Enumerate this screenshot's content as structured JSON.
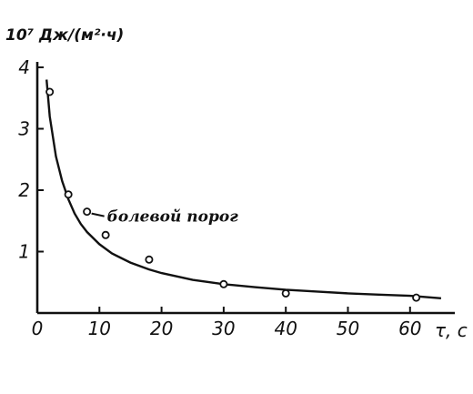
{
  "chart_data": {
    "type": "line",
    "ylabel": "10⁷ Дж/(м²·ч)",
    "xlabel": "τ, с",
    "xlim": [
      0,
      65
    ],
    "ylim": [
      0,
      4
    ],
    "x_ticks": [
      0,
      10,
      20,
      30,
      40,
      50,
      60
    ],
    "y_ticks": [
      1,
      2,
      3,
      4
    ],
    "x_tick_labels": [
      "0",
      "10",
      "20",
      "30",
      "40",
      "50",
      "60"
    ],
    "y_tick_labels": [
      "1",
      "2",
      "3",
      "4"
    ],
    "series": [
      {
        "kind": "curve",
        "x": [
          1.5,
          2,
          3,
          4,
          5,
          6,
          7,
          8,
          10,
          12,
          15,
          18,
          20,
          25,
          30,
          35,
          40,
          45,
          50,
          55,
          60,
          65
        ],
        "y": [
          3.8,
          3.2,
          2.55,
          2.15,
          1.85,
          1.62,
          1.45,
          1.32,
          1.12,
          0.97,
          0.82,
          0.71,
          0.65,
          0.54,
          0.47,
          0.42,
          0.38,
          0.35,
          0.32,
          0.3,
          0.28,
          0.24
        ]
      },
      {
        "kind": "points",
        "x": [
          2,
          5,
          8,
          11,
          18,
          30,
          40,
          61
        ],
        "y": [
          3.6,
          1.93,
          1.65,
          1.27,
          0.87,
          0.47,
          0.32,
          0.25
        ]
      }
    ],
    "annotations": [
      {
        "text": "болевой порог",
        "x": 8,
        "y": 1.65
      }
    ]
  }
}
